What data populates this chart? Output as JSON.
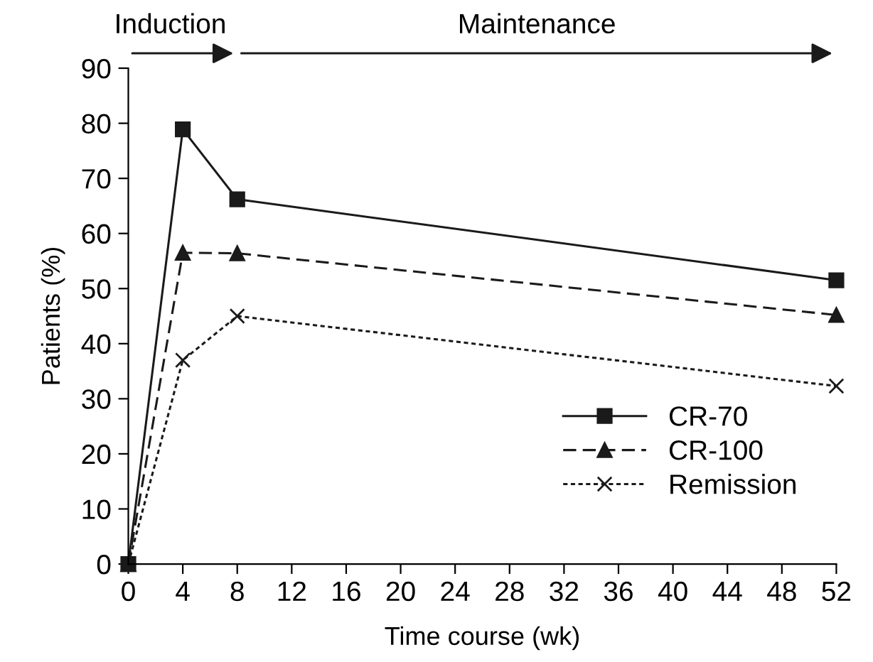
{
  "chart_data": {
    "type": "line",
    "xlabel": "Time course (wk)",
    "ylabel": "Patients (%)",
    "annotations": [
      "Induction",
      "Maintenance"
    ],
    "x": [
      0,
      4,
      8,
      52
    ],
    "series": [
      {
        "name": "CR-70",
        "color": "#1a1a1a",
        "values": [
          0,
          78.9,
          66.2,
          51.5
        ],
        "marker": "square",
        "line_style": "solid"
      },
      {
        "name": "CR-100",
        "color": "#1a1a1a",
        "values": [
          0,
          56.5,
          56.4,
          45.2
        ],
        "marker": "triangle",
        "line_style": "dashed"
      },
      {
        "name": "Remission",
        "color": "#1a1a1a",
        "values": [
          0,
          37,
          45,
          32.3
        ],
        "marker": "cross",
        "line_style": "dotted"
      }
    ],
    "xlim": [
      0,
      52
    ],
    "xticks": [
      0,
      4,
      8,
      12,
      16,
      20,
      24,
      28,
      32,
      36,
      40,
      44,
      48,
      52
    ],
    "ylim": [
      0,
      90
    ],
    "yticks": [
      0,
      10,
      20,
      30,
      40,
      50,
      60,
      70,
      80,
      90
    ],
    "grid": false,
    "legend": "bottom right"
  }
}
